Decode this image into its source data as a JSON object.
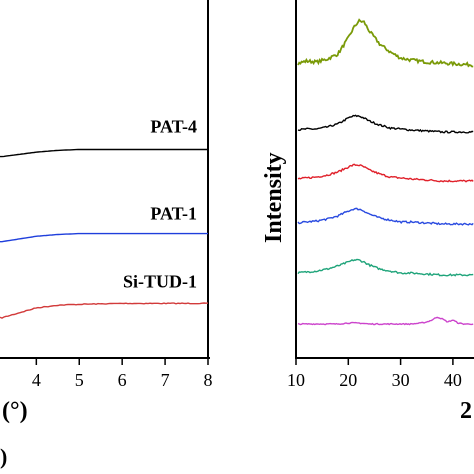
{
  "chart_data": [
    {
      "type": "line",
      "xlabel_fragment": "(°)",
      "panel_fragment": ")",
      "xlim": [
        3.2,
        8
      ],
      "x_ticks": [
        4,
        5,
        6,
        7,
        8
      ],
      "grid": false,
      "series": [
        {
          "name": "PAT-4",
          "color": "#000000",
          "x": [
            3.2,
            4,
            4.5,
            5,
            6,
            7,
            8
          ],
          "y": [
            0.925,
            0.93,
            0.932,
            0.933,
            0.933,
            0.933,
            0.933
          ]
        },
        {
          "name": "PAT-1",
          "color": "#1f3fdc",
          "x": [
            3.2,
            4,
            4.5,
            5,
            6,
            7,
            8
          ],
          "y": [
            0.83,
            0.836,
            0.838,
            0.839,
            0.839,
            0.839,
            0.839
          ]
        },
        {
          "name": "Si-TUD-1",
          "color": "#d23a3a",
          "x": [
            3.2,
            4,
            4.5,
            5,
            6,
            7,
            8
          ],
          "y": [
            0.745,
            0.756,
            0.759,
            0.76,
            0.761,
            0.761,
            0.761
          ]
        }
      ]
    },
    {
      "type": "line",
      "ylabel": "Intensity",
      "xlabel_fragment": "2",
      "xlim": [
        10,
        47
      ],
      "x_ticks": [
        10,
        20,
        30,
        40
      ],
      "grid": false,
      "series": [
        {
          "color": "#7a9a08",
          "noise": 1.6,
          "x": [
            10,
            12,
            14,
            16,
            18,
            20,
            21,
            22,
            23,
            24,
            26,
            28,
            30,
            32,
            35,
            38,
            41,
            44,
            47
          ],
          "y": [
            12,
            15,
            14,
            17,
            22,
            38,
            48,
            55,
            54,
            45,
            32,
            24,
            18,
            16,
            14,
            13,
            12,
            11,
            10
          ]
        },
        {
          "color": "#000000",
          "noise": 0.9,
          "x": [
            10,
            12,
            14,
            16,
            18,
            20,
            21,
            22,
            23,
            24,
            26,
            28,
            30,
            32,
            35,
            38,
            41,
            44,
            47
          ],
          "y": [
            4,
            5,
            5,
            7,
            10,
            16,
            18,
            18,
            16,
            13,
            9,
            6,
            5,
            4,
            3,
            2,
            2,
            2,
            2
          ]
        },
        {
          "color": "#e0202a",
          "noise": 0.9,
          "x": [
            10,
            12,
            14,
            16,
            18,
            20,
            21,
            22,
            23,
            24,
            26,
            28,
            30,
            32,
            35,
            38,
            41,
            44,
            47
          ],
          "y": [
            4,
            5,
            6,
            8,
            11,
            16,
            18,
            18,
            16,
            13,
            9,
            6,
            5,
            4,
            3,
            2,
            2,
            2,
            2
          ]
        },
        {
          "color": "#2a4be0",
          "noise": 0.9,
          "x": [
            10,
            12,
            14,
            16,
            18,
            20,
            21,
            22,
            23,
            24,
            26,
            28,
            30,
            32,
            35,
            38,
            41,
            44,
            47
          ],
          "y": [
            3,
            4,
            5,
            7,
            10,
            15,
            17,
            17,
            15,
            12,
            8,
            6,
            4,
            4,
            3,
            2,
            2,
            2,
            2
          ]
        },
        {
          "color": "#1fa47a",
          "noise": 0.9,
          "x": [
            10,
            12,
            14,
            16,
            18,
            20,
            21,
            22,
            23,
            24,
            26,
            28,
            30,
            32,
            35,
            38,
            41,
            44,
            47
          ],
          "y": [
            4,
            5,
            6,
            8,
            11,
            15,
            17,
            17,
            15,
            12,
            8,
            6,
            4,
            4,
            3,
            2,
            2,
            2,
            2
          ]
        },
        {
          "color": "#cc44cc",
          "noise": 0.5,
          "x": [
            10,
            12,
            14,
            16,
            18,
            20,
            22,
            24,
            26,
            28,
            30,
            32,
            34,
            35,
            36,
            37,
            38,
            39,
            40,
            41,
            42,
            44,
            47
          ],
          "y": [
            2,
            2,
            2,
            2,
            2,
            3,
            3,
            2,
            2,
            2,
            2,
            2,
            3,
            4,
            6,
            9,
            7,
            4,
            6,
            3,
            2,
            2,
            2
          ]
        }
      ]
    }
  ],
  "panel1": {
    "labels": [
      {
        "text": "PAT-4",
        "series": 0
      },
      {
        "text": "PAT-1",
        "series": 1
      },
      {
        "text": "Si-TUD-1",
        "series": 2
      }
    ]
  }
}
